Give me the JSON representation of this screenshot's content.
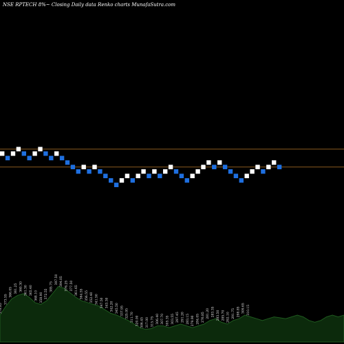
{
  "chart_data": {
    "type": "renko",
    "title": "NSE RPTECH 8%~  Closing Daily data  Renko  charts MunafaSutra.com",
    "colors": {
      "background": "#000000",
      "up_brick": "#ffffff",
      "down_brick": "#1e6fe0",
      "reference_line": "#8a5a1f",
      "volume_fill": "#0c2a0c",
      "volume_stroke": "#1f5a1f"
    },
    "price_scale": {
      "top_level": 9,
      "bottom_level": -8
    },
    "reference_levels": [
      8,
      4
    ],
    "bricks": [
      {
        "level": 7,
        "direction": "up"
      },
      {
        "level": 6,
        "direction": "down"
      },
      {
        "level": 7,
        "direction": "up"
      },
      {
        "level": 8,
        "direction": "up"
      },
      {
        "level": 7,
        "direction": "down"
      },
      {
        "level": 6,
        "direction": "down"
      },
      {
        "level": 7,
        "direction": "up"
      },
      {
        "level": 8,
        "direction": "up"
      },
      {
        "level": 7,
        "direction": "down"
      },
      {
        "level": 6,
        "direction": "down"
      },
      {
        "level": 7,
        "direction": "up"
      },
      {
        "level": 6,
        "direction": "down"
      },
      {
        "level": 5,
        "direction": "down"
      },
      {
        "level": 4,
        "direction": "down"
      },
      {
        "level": 3,
        "direction": "down"
      },
      {
        "level": 4,
        "direction": "up"
      },
      {
        "level": 3,
        "direction": "down"
      },
      {
        "level": 4,
        "direction": "up"
      },
      {
        "level": 3,
        "direction": "down"
      },
      {
        "level": 2,
        "direction": "down"
      },
      {
        "level": 1,
        "direction": "down"
      },
      {
        "level": 0,
        "direction": "down"
      },
      {
        "level": 1,
        "direction": "up"
      },
      {
        "level": 2,
        "direction": "up"
      },
      {
        "level": 1,
        "direction": "down"
      },
      {
        "level": 2,
        "direction": "up"
      },
      {
        "level": 3,
        "direction": "up"
      },
      {
        "level": 2,
        "direction": "down"
      },
      {
        "level": 3,
        "direction": "up"
      },
      {
        "level": 2,
        "direction": "down"
      },
      {
        "level": 3,
        "direction": "up"
      },
      {
        "level": 4,
        "direction": "up"
      },
      {
        "level": 3,
        "direction": "down"
      },
      {
        "level": 2,
        "direction": "down"
      },
      {
        "level": 1,
        "direction": "down"
      },
      {
        "level": 2,
        "direction": "up"
      },
      {
        "level": 3,
        "direction": "up"
      },
      {
        "level": 4,
        "direction": "up"
      },
      {
        "level": 5,
        "direction": "up"
      },
      {
        "level": 4,
        "direction": "down"
      },
      {
        "level": 5,
        "direction": "up"
      },
      {
        "level": 4,
        "direction": "down"
      },
      {
        "level": 3,
        "direction": "down"
      },
      {
        "level": 2,
        "direction": "down"
      },
      {
        "level": 1,
        "direction": "down"
      },
      {
        "level": 2,
        "direction": "up"
      },
      {
        "level": 3,
        "direction": "up"
      },
      {
        "level": 4,
        "direction": "up"
      },
      {
        "level": 3,
        "direction": "down"
      },
      {
        "level": 4,
        "direction": "up"
      },
      {
        "level": 5,
        "direction": "up"
      },
      {
        "level": 4,
        "direction": "down"
      }
    ],
    "volume_profile": [
      30,
      40,
      48,
      52,
      54,
      50,
      44,
      42,
      46,
      54,
      62,
      60,
      55,
      50,
      46,
      44,
      42,
      40,
      36,
      32,
      30,
      27,
      24,
      20,
      16,
      14,
      15,
      18,
      18,
      16,
      18,
      20,
      18,
      16,
      18,
      20,
      24,
      26,
      22,
      20,
      24,
      26,
      30,
      28,
      26,
      24,
      26,
      28,
      27,
      26,
      28,
      30,
      28,
      24,
      22,
      24,
      28,
      30,
      28,
      30
    ],
    "volume_labels": [
      "378.85",
      "373.55",
      "366.05",
      "361.25",
      "360.30",
      "361.30",
      "365.40",
      "368.10",
      "358.90",
      "372.55",
      "385.75",
      "397.50",
      "394.05",
      "376.25",
      "377.50",
      "361.65",
      "364.55",
      "356.55",
      "352.40",
      "341.50",
      "347.50",
      "343.30",
      "342.20",
      "345.50",
      "337.95",
      "325.95",
      "311.70",
      "320.00",
      "306.45",
      "317.00",
      "315.75",
      "306.40",
      "307.70",
      "305.35",
      "303.55",
      "297.45",
      "291.20",
      "283.15",
      "279.90",
      "284.05",
      "276.85",
      "281.20",
      "283.35",
      "283.50",
      "285.70",
      "292.10",
      "291.75",
      "298.85",
      "309.65",
      "310.15"
    ]
  }
}
